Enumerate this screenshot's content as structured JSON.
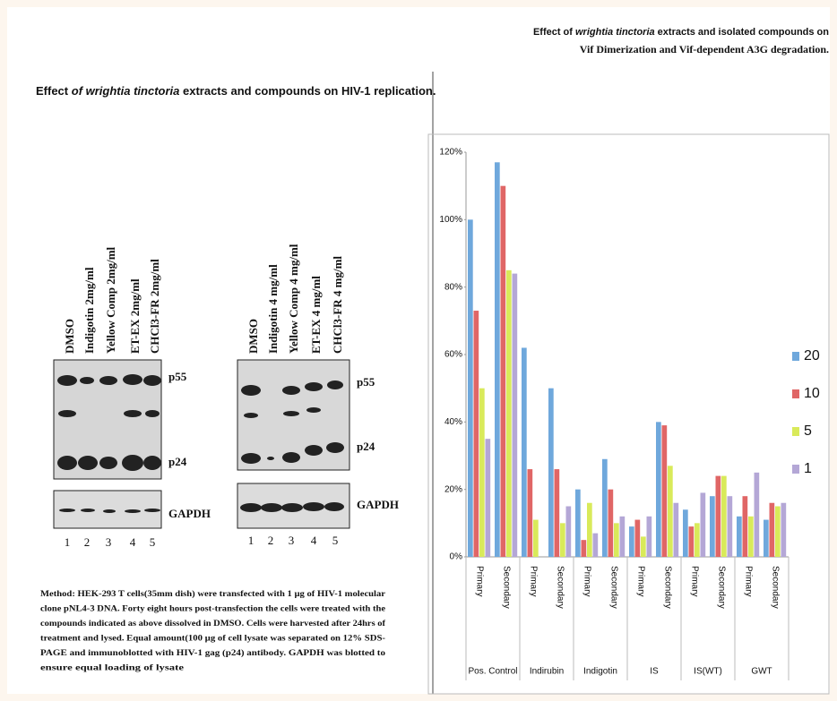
{
  "blot_panel": {
    "title": [
      "Effect",
      "of  wrightia tinctoria",
      "extracts and compounds on HIV-1 replication."
    ],
    "blots": [
      {
        "lanes": [
          "DMSO",
          "Indigotin 2mg/ml",
          "Yellow Comp 2mg/ml",
          "ET-EX 2mg/ml",
          "CHCl3-FR 2mg/ml"
        ],
        "bands": [
          "p55",
          "p24",
          "GAPDH"
        ],
        "lane_numbers": [
          "1",
          "2",
          "3",
          "4",
          "5"
        ]
      },
      {
        "lanes": [
          "DMSO",
          "Indigotin 4 mg/ml",
          "Yellow Comp 4 mg/ml",
          "ET-EX 4 mg/ml",
          "CHCl3-FR 4 mg/ml"
        ],
        "bands": [
          "p55",
          "p24",
          "GAPDH"
        ],
        "lane_numbers": [
          "1",
          "2",
          "3",
          "4",
          "5"
        ]
      }
    ],
    "method": [
      "Method: HEK-293 T cells(35mm dish) were transfected with 1 µg of HIV-1  molecular",
      "clone pNL4-3 DNA. Forty eight hours post-transfection the cells were treated with the",
      "compounds indicated as above dissolved in DMSO. Cells were harvested after 24hrs of",
      "treatment and  lysed. Equal amount(100 µg of cell lysate was separated on 12% SDS-",
      "PAGE and immunoblotted with HIV-1 gag (p24) antibody. GAPDH was blotted to",
      "ensure equal loading of lysate"
    ]
  },
  "chart_data": {
    "type": "bar",
    "title": [
      "Effect of ",
      "wrightia  tinctoria",
      " extracts and isolated compounds on",
      "Vif Dimerization and  Vif-dependent A3G degradation."
    ],
    "categories": [
      "Primary",
      "Secondary",
      "Primary",
      "Secondary",
      "Primary",
      "Secondary",
      "Primary",
      "Secondary",
      "Primary",
      "Secondary",
      "Primary",
      "Secondary"
    ],
    "groups": [
      "Pos. Control",
      "Indirubin",
      "Indigotin",
      "IS",
      "IS(WT)",
      "GWT"
    ],
    "series": [
      {
        "name": "20",
        "color": "#6fa8dc",
        "values": [
          100,
          117,
          62,
          50,
          20,
          29,
          9,
          40,
          14,
          18,
          12,
          11
        ]
      },
      {
        "name": "10",
        "color": "#e06666",
        "values": [
          73,
          110,
          26,
          26,
          5,
          20,
          11,
          39,
          9,
          24,
          18,
          16
        ]
      },
      {
        "name": "5",
        "color": "#d9ea5a",
        "values": [
          50,
          85,
          11,
          10,
          16,
          10,
          6,
          27,
          10,
          24,
          12,
          15
        ]
      },
      {
        "name": "1",
        "color": "#b4a7d6",
        "values": [
          35,
          84,
          null,
          15,
          7,
          12,
          12,
          16,
          19,
          18,
          25,
          16
        ]
      }
    ],
    "ylim": [
      0,
      120
    ],
    "yticks": [
      {
        "value": 0,
        "label": "0%"
      },
      {
        "value": 20,
        "label": "20%"
      },
      {
        "value": 40,
        "label": "40%"
      },
      {
        "value": 60,
        "label": "60%"
      },
      {
        "value": 80,
        "label": "80%"
      },
      {
        "value": 100,
        "label": "100%"
      },
      {
        "value": 120,
        "label": "120%"
      }
    ],
    "grid": false,
    "legend": "right"
  }
}
